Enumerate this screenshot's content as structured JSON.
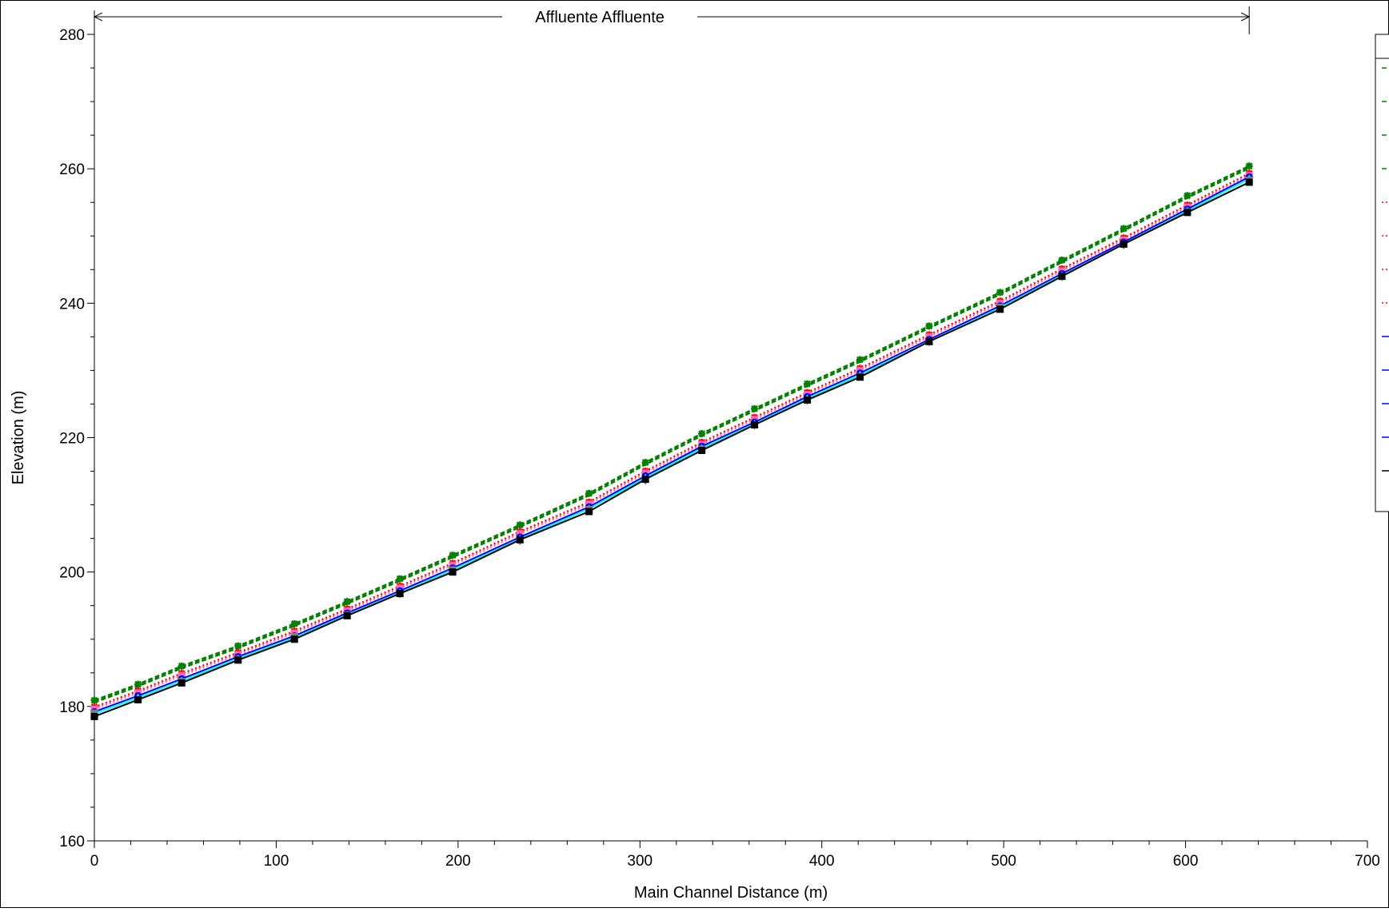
{
  "reach": {
    "label": "Affluente Affluente",
    "x_start": 0,
    "x_end": 635
  },
  "chart_data": {
    "type": "line",
    "title": "",
    "xlabel": "Main Channel Distance (m)",
    "ylabel": "Elevation (m)",
    "xlim": [
      0,
      700
    ],
    "ylim": [
      160,
      280
    ],
    "xticks": [
      0,
      100,
      200,
      300,
      400,
      500,
      600,
      700
    ],
    "yticks": [
      160,
      180,
      200,
      220,
      240,
      260,
      280
    ],
    "x": [
      0,
      24,
      48,
      79,
      110,
      139,
      168,
      197,
      234,
      272,
      303,
      334,
      363,
      392,
      421,
      459,
      498,
      532,
      566,
      601,
      635
    ],
    "series": [
      {
        "color": "#008000",
        "line": "dashed",
        "marker": "star",
        "values": [
          180.9,
          183.3,
          186.0,
          189.0,
          192.3,
          195.6,
          199.0,
          202.5,
          207.0,
          211.7,
          216.3,
          220.6,
          224.3,
          228.0,
          231.6,
          236.6,
          241.6,
          246.4,
          251.1,
          256.0,
          260.4
        ]
      },
      {
        "color": "#008000",
        "line": "dashed",
        "marker": "none",
        "values": [
          180.6,
          183.0,
          185.7,
          188.7,
          192.0,
          195.3,
          198.7,
          202.2,
          206.7,
          211.4,
          216.0,
          220.3,
          224.0,
          227.7,
          231.3,
          236.3,
          241.3,
          246.1,
          250.8,
          255.7,
          260.1
        ]
      },
      {
        "color": "#FF0000",
        "line": "dotted",
        "marker": "star",
        "values": [
          179.9,
          182.3,
          184.9,
          188.0,
          191.2,
          194.5,
          197.9,
          201.3,
          206.0,
          210.4,
          215.0,
          219.3,
          223.0,
          226.7,
          230.3,
          235.3,
          240.3,
          245.1,
          249.7,
          254.6,
          259.3
        ]
      },
      {
        "color": "#FF69B4",
        "line": "dotted",
        "marker": "square",
        "values": [
          179.6,
          182.0,
          184.6,
          187.7,
          190.9,
          194.2,
          197.6,
          201.0,
          205.7,
          210.1,
          214.7,
          219.0,
          222.7,
          226.4,
          230.0,
          235.0,
          240.0,
          244.8,
          249.4,
          254.3,
          259.0
        ]
      },
      {
        "color": "#0000FF",
        "line": "solid",
        "marker": "circle",
        "values": [
          179.2,
          181.6,
          184.1,
          187.4,
          190.5,
          193.9,
          197.2,
          200.6,
          205.2,
          209.7,
          214.3,
          218.7,
          222.3,
          226.1,
          229.6,
          234.6,
          239.6,
          244.4,
          249.1,
          254.0,
          258.8
        ]
      },
      {
        "color": "#00FFFF",
        "line": "solid",
        "marker": "triangle",
        "values": [
          178.9,
          181.3,
          183.8,
          187.1,
          190.2,
          193.6,
          196.9,
          200.3,
          204.9,
          209.4,
          214.0,
          218.4,
          222.0,
          225.8,
          229.3,
          234.3,
          239.3,
          244.1,
          248.8,
          253.7,
          258.5
        ]
      },
      {
        "color": "#808080",
        "line": "none",
        "marker": "triangle-down",
        "values": [
          179.0,
          181.0,
          183.7,
          187.0,
          190.4,
          193.6,
          196.7,
          200.3,
          204.6,
          209.3,
          213.6,
          218.3,
          221.8,
          225.5,
          229.1,
          234.2,
          239.4,
          243.9,
          248.6,
          253.6,
          258.3
        ]
      },
      {
        "color": "#000000",
        "line": "solid",
        "marker": "square",
        "values": [
          178.5,
          181.0,
          183.5,
          186.9,
          190.0,
          193.5,
          196.8,
          200.0,
          204.8,
          209.0,
          213.8,
          218.1,
          221.9,
          225.6,
          229.0,
          234.3,
          239.1,
          244.0,
          248.8,
          253.5,
          258.0
        ]
      }
    ],
    "legend": {
      "placement": "right",
      "entries": [
        {
          "color": "#008000",
          "line": "dashed"
        },
        {
          "color": "#008000",
          "line": "dashed"
        },
        {
          "color": "#008000",
          "line": "dashed"
        },
        {
          "color": "#008000",
          "line": "dashed"
        },
        {
          "color": "#FF0000",
          "line": "dotted"
        },
        {
          "color": "#FF0000",
          "line": "dotted"
        },
        {
          "color": "#FF0000",
          "line": "dotted"
        },
        {
          "color": "#FF0000",
          "line": "dotted"
        },
        {
          "color": "#0000FF",
          "line": "solid"
        },
        {
          "color": "#0000FF",
          "line": "solid"
        },
        {
          "color": "#0000FF",
          "line": "solid"
        },
        {
          "color": "#0000FF",
          "line": "solid"
        },
        {
          "color": "#000000",
          "line": "solid"
        }
      ]
    }
  }
}
